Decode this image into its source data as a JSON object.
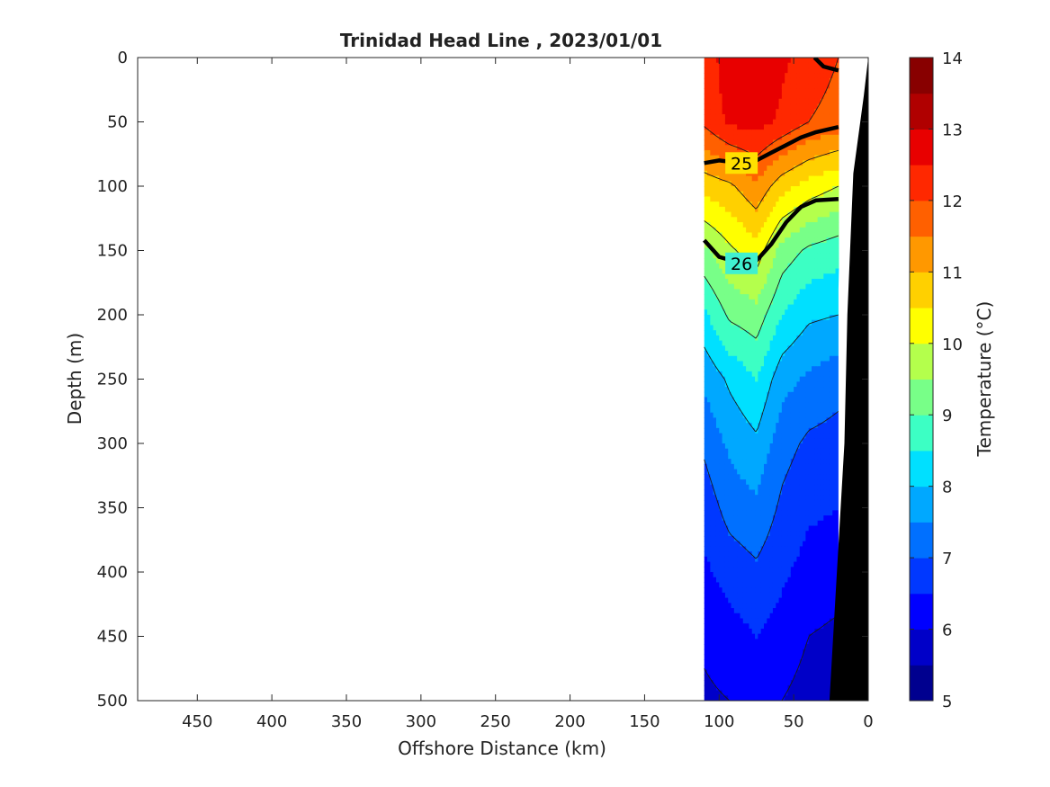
{
  "chart_data": {
    "type": "heatmap",
    "title": "Trinidad Head Line , 2023/01/01",
    "xlabel": "Offshore Distance (km)",
    "ylabel": "Depth (m)",
    "xlim": [
      490,
      0
    ],
    "ylim": [
      0,
      500
    ],
    "x_reversed": true,
    "y_reversed": true,
    "x_ticks": [
      450,
      400,
      350,
      300,
      250,
      200,
      150,
      100,
      50,
      0
    ],
    "y_ticks": [
      0,
      50,
      100,
      150,
      200,
      250,
      300,
      350,
      400,
      450,
      500
    ],
    "colorbar": {
      "label": "Temperature (°C)",
      "min": 5,
      "max": 14,
      "step": 0.5,
      "ticks": [
        5,
        6,
        7,
        8,
        9,
        10,
        11,
        12,
        13,
        14
      ],
      "colors": [
        "#00008f",
        "#0000c8",
        "#0000ff",
        "#0038ff",
        "#0070ff",
        "#00a8ff",
        "#00e0ff",
        "#3cffc4",
        "#78ff88",
        "#b4ff4c",
        "#ffff00",
        "#ffd000",
        "#ff9800",
        "#ff6000",
        "#ff2800",
        "#e80000",
        "#b00000",
        "#880000"
      ]
    },
    "section_extent_km": [
      110,
      20
    ],
    "stations_km": [
      110,
      93,
      75,
      58,
      40,
      20
    ],
    "depths_m": [
      0,
      50,
      100,
      150,
      200,
      250,
      300,
      350,
      400,
      450,
      500
    ],
    "temperature_c": [
      [
        12.2,
        12.8,
        13.0,
        12.6,
        12.3,
        12.0
      ],
      [
        12.1,
        12.6,
        12.7,
        12.4,
        12.0,
        11.8
      ],
      [
        10.7,
        10.9,
        11.4,
        10.7,
        10.3,
        10.0
      ],
      [
        9.4,
        9.9,
        10.3,
        9.3,
        8.9,
        8.7
      ],
      [
        8.4,
        9.1,
        9.3,
        8.5,
        8.1,
        8.0
      ],
      [
        7.6,
        8.1,
        8.5,
        7.7,
        7.4,
        7.2
      ],
      [
        7.1,
        7.6,
        7.9,
        7.2,
        6.9,
        6.8
      ],
      [
        6.7,
        7.2,
        7.4,
        6.9,
        6.6,
        6.5
      ],
      [
        6.4,
        6.7,
        6.9,
        6.6,
        6.3,
        6.2
      ],
      [
        6.1,
        6.3,
        6.5,
        6.3,
        6.0,
        5.9
      ],
      [
        5.9,
        6.0,
        6.2,
        6.0,
        5.8,
        5.7
      ]
    ],
    "density_contours": [
      {
        "label": "25",
        "points": [
          [
            110,
            82
          ],
          [
            100,
            80
          ],
          [
            85,
            82
          ],
          [
            75,
            80
          ],
          [
            65,
            74
          ],
          [
            55,
            68
          ],
          [
            45,
            62
          ],
          [
            35,
            58
          ],
          [
            20,
            54
          ]
        ]
      },
      {
        "label": "26",
        "points": [
          [
            110,
            142
          ],
          [
            100,
            155
          ],
          [
            85,
            160
          ],
          [
            75,
            158
          ],
          [
            65,
            145
          ],
          [
            55,
            128
          ],
          [
            45,
            116
          ],
          [
            35,
            111
          ],
          [
            20,
            110
          ]
        ]
      },
      {
        "label": "",
        "points": [
          [
            36,
            0
          ],
          [
            30,
            7
          ],
          [
            20,
            10
          ]
        ]
      }
    ],
    "bathymetry": [
      [
        20,
        500
      ],
      [
        20,
        420
      ],
      [
        20,
        310
      ],
      [
        20,
        180
      ],
      [
        18,
        90
      ],
      [
        8,
        40
      ],
      [
        0,
        0
      ],
      [
        0,
        500
      ]
    ]
  }
}
